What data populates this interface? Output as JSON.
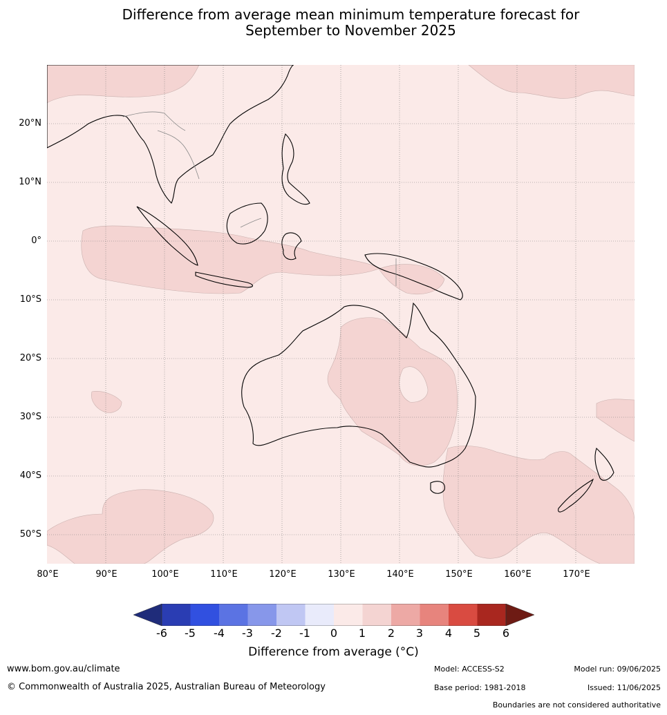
{
  "title_line1": "Difference from average mean minimum temperature forecast for",
  "title_line2": "September to November 2025",
  "map": {
    "lat_labels": [
      "20°N",
      "10°N",
      "0°",
      "10°S",
      "20°S",
      "30°S",
      "40°S",
      "50°S"
    ],
    "lon_labels": [
      "80°E",
      "90°E",
      "100°E",
      "110°E",
      "120°E",
      "130°E",
      "140°E",
      "150°E",
      "160°E",
      "170°E"
    ],
    "background_color": "#fbeae8",
    "anomaly_1_2_color": "#f4d4d2"
  },
  "colorbar": {
    "title": "Difference from average (°C)",
    "ticks": [
      "-6",
      "-5",
      "-4",
      "-3",
      "-2",
      "-1",
      "0",
      "1",
      "2",
      "3",
      "4",
      "5",
      "6"
    ],
    "colors": [
      "#1f2c7a",
      "#2a3db3",
      "#3150e0",
      "#5b73e3",
      "#8797ea",
      "#c0c7f3",
      "#e9ebfb",
      "#fbeae8",
      "#f4d4d2",
      "#eda9a5",
      "#e7847d",
      "#d94b41",
      "#a9271f",
      "#6e1b14"
    ]
  },
  "footer": {
    "website": "www.bom.gov.au/climate",
    "copyright": "© Commonwealth of Australia 2025, Australian Bureau of Meteorology",
    "model": "Model: ACCESS-S2",
    "base_period": "Base period: 1981-2018",
    "model_run": "Model run: 09/06/2025",
    "issued": "Issued: 11/06/2025",
    "disclaimer": "Boundaries are not considered authoritative"
  }
}
